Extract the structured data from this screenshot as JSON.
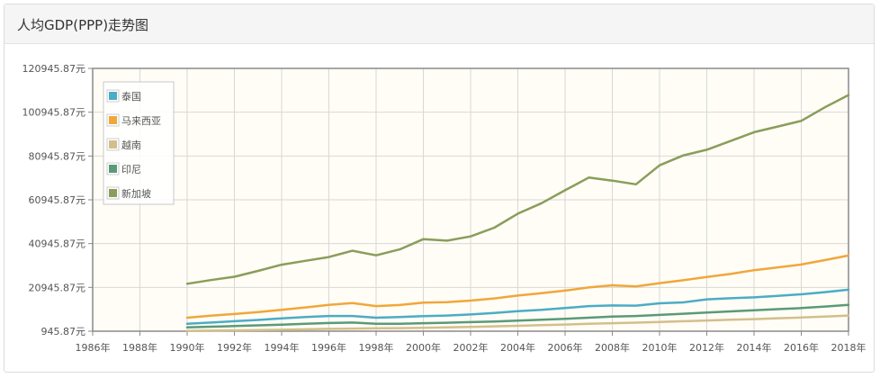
{
  "panel": {
    "title": "人均GDP(PPP)走势图"
  },
  "colors": {
    "plot_background": "#fffdf6",
    "grid": "#d8d8d8",
    "axis": "#8a8a8a"
  },
  "chart_data": {
    "type": "line",
    "title": "",
    "xlabel": "",
    "ylabel": "",
    "xlim": [
      1986,
      2018
    ],
    "ylim": [
      945.87,
      120945.87
    ],
    "x_ticks": [
      1986,
      1988,
      1990,
      1992,
      1994,
      1996,
      1998,
      2000,
      2002,
      2004,
      2006,
      2008,
      2010,
      2012,
      2014,
      2016,
      2018
    ],
    "x_tick_labels": [
      "1986年",
      "1988年",
      "1990年",
      "1992年",
      "1994年",
      "1996年",
      "1998年",
      "2000年",
      "2002年",
      "2004年",
      "2006年",
      "2008年",
      "2010年",
      "2012年",
      "2014年",
      "2016年",
      "2018年"
    ],
    "y_ticks": [
      945.87,
      20945.87,
      40945.87,
      60945.87,
      80945.87,
      100945.87,
      120945.87
    ],
    "y_tick_labels": [
      "945.87元",
      "20945.87元",
      "40945.87元",
      "60945.87元",
      "80945.87元",
      "100945.87元",
      "120945.87元"
    ],
    "grid": true,
    "legend_position": "top-left",
    "x": [
      1990,
      1991,
      1992,
      1993,
      1994,
      1995,
      1996,
      1997,
      1998,
      1999,
      2000,
      2001,
      2002,
      2003,
      2004,
      2005,
      2006,
      2007,
      2008,
      2009,
      2010,
      2011,
      2012,
      2013,
      2014,
      2015,
      2016,
      2017,
      2018
    ],
    "series": [
      {
        "name": "泰国",
        "color": "#4bacc6",
        "values": [
          4300,
          4900,
          5500,
          6100,
          6800,
          7400,
          7900,
          7900,
          7100,
          7400,
          7800,
          8100,
          8600,
          9300,
          10100,
          10700,
          11500,
          12400,
          12700,
          12600,
          13700,
          14100,
          15500,
          16000,
          16400,
          17100,
          17800,
          18800,
          19900
        ]
      },
      {
        "name": "马来西亚",
        "color": "#f0a73a",
        "values": [
          7100,
          8000,
          8800,
          9700,
          10700,
          11800,
          13000,
          13800,
          12400,
          12900,
          14000,
          14200,
          14900,
          15900,
          17200,
          18300,
          19500,
          20900,
          21900,
          21400,
          22900,
          24200,
          25700,
          27100,
          28800,
          30100,
          31400,
          33400,
          35500
        ]
      },
      {
        "name": "越南",
        "color": "#d2bf8b",
        "values": [
          1100,
          1200,
          1300,
          1450,
          1600,
          1800,
          2000,
          2150,
          2250,
          2350,
          2500,
          2700,
          2900,
          3150,
          3400,
          3750,
          4000,
          4300,
          4600,
          4850,
          5150,
          5500,
          5850,
          6150,
          6450,
          6850,
          7200,
          7600,
          8100
        ]
      },
      {
        "name": "印尼",
        "color": "#5a9a78",
        "values": [
          2700,
          3000,
          3300,
          3600,
          3900,
          4300,
          4700,
          4900,
          4300,
          4300,
          4600,
          4800,
          5100,
          5400,
          5800,
          6200,
          6600,
          7100,
          7600,
          7900,
          8400,
          8900,
          9500,
          10000,
          10500,
          11000,
          11500,
          12200,
          13000
        ]
      },
      {
        "name": "新加坡",
        "color": "#8a9d5a",
        "values": [
          22600,
          24300,
          25800,
          28500,
          31300,
          33100,
          34800,
          37700,
          35600,
          38300,
          43000,
          42300,
          44200,
          48200,
          54600,
          59400,
          65300,
          71100,
          69700,
          68000,
          76700,
          81200,
          83800,
          87800,
          91800,
          94400,
          97000,
          103200,
          108800
        ]
      }
    ]
  }
}
